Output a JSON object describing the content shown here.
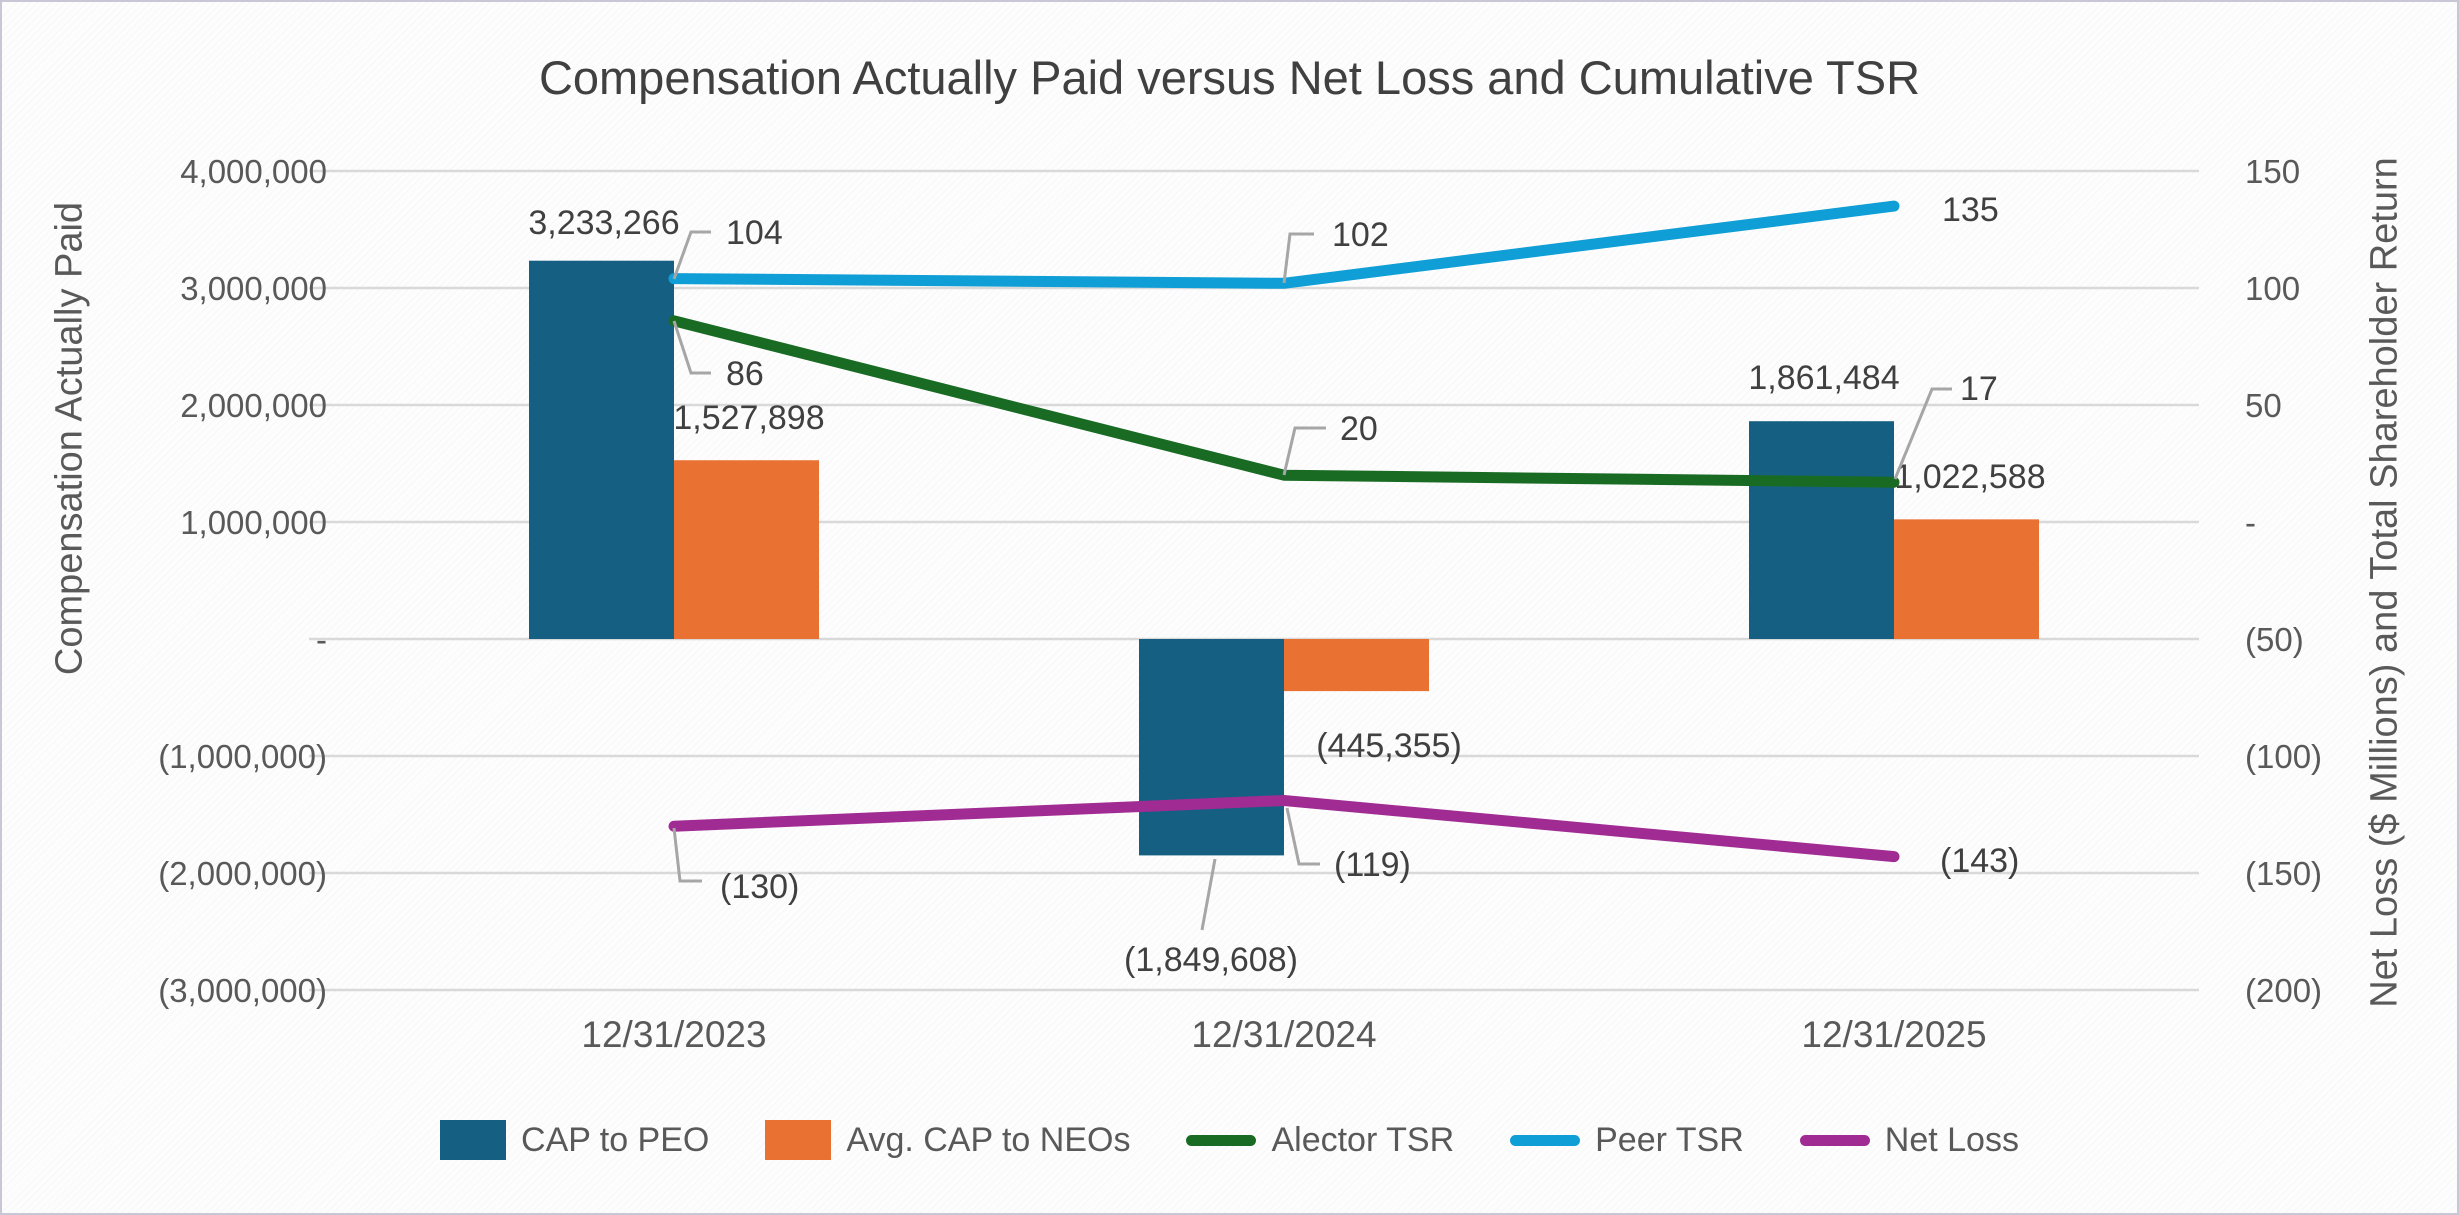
{
  "title": "Compensation Actually Paid versus Net Loss and Cumulative TSR",
  "left_axis": {
    "title": "Compensation Actually Paid",
    "ticks": [
      "4,000,000",
      "3,000,000",
      "2,000,000",
      "1,000,000",
      "-",
      "(1,000,000)",
      "(2,000,000)",
      "(3,000,000)"
    ]
  },
  "right_axis": {
    "title": "Net Loss ($ Millions) and Total Shareholder Return",
    "ticks": [
      "150",
      "100",
      "50",
      "-",
      "(50)",
      "(100)",
      "(150)",
      "(200)"
    ]
  },
  "chart_data": {
    "type": "combo",
    "categories": [
      "12/31/2023",
      "12/31/2024",
      "12/31/2025"
    ],
    "left_axis_range": [
      -3000000,
      4000000,
      1000000
    ],
    "right_axis_range": [
      -200,
      150,
      50
    ],
    "grid": true,
    "legend_position": "bottom",
    "colors": {
      "grid": "#d9d9d9",
      "leader": "#a6a6a6",
      "tick_text": "#595959",
      "label_text": "#404040"
    },
    "series": [
      {
        "name": "CAP to PEO",
        "type": "bar",
        "axis": "left",
        "color": "#156082",
        "values": [
          3233266,
          -1849608,
          1861484
        ],
        "labels": [
          "3,233,266",
          "(1,849,608)",
          "1,861,484"
        ]
      },
      {
        "name": "Avg. CAP to NEOs",
        "type": "bar",
        "axis": "left",
        "color": "#E97132",
        "values": [
          1527898,
          -445355,
          1022588
        ],
        "labels": [
          "1,527,898",
          "(445,355)",
          "1,022,588"
        ]
      },
      {
        "name": "Alector TSR",
        "type": "line",
        "axis": "right",
        "color": "#196B24",
        "values": [
          86,
          20,
          17
        ],
        "labels": [
          "86",
          "20",
          "17"
        ]
      },
      {
        "name": "Peer TSR",
        "type": "line",
        "axis": "right",
        "color": "#0F9ED5",
        "values": [
          104,
          102,
          135
        ],
        "labels": [
          "104",
          "102",
          "135"
        ]
      },
      {
        "name": "Net Loss",
        "type": "line",
        "axis": "right",
        "color": "#A02B93",
        "values": [
          -130,
          -119,
          -143
        ],
        "labels": [
          "(130)",
          "(119)",
          "(143)"
        ]
      }
    ]
  }
}
